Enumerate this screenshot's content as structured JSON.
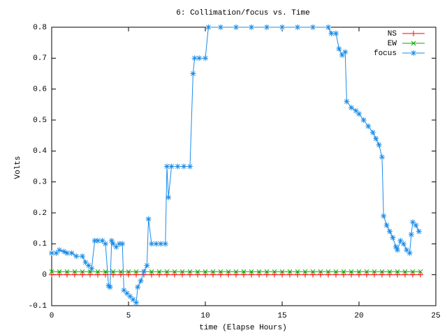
{
  "chart_data": {
    "type": "line",
    "title": "6: Collimation/focus vs. Time",
    "x_label": "time (Elapse Hours)",
    "y_label": "Volts",
    "xlim": [
      0,
      25
    ],
    "ylim": [
      -0.1,
      0.8
    ],
    "xticks": [
      0,
      5,
      10,
      15,
      20,
      25
    ],
    "yticks": [
      -0.1,
      0,
      0.1,
      0.2,
      0.3,
      0.4,
      0.5,
      0.6,
      0.7,
      0.8
    ],
    "legend": "top-right",
    "x": [
      0,
      0.5,
      1,
      1.5,
      2,
      2.5,
      3,
      3.5,
      4,
      4.5,
      5,
      5.5,
      6,
      6.5,
      7,
      7.5,
      8,
      8.5,
      9,
      9.5,
      10,
      10.5,
      11,
      11.5,
      12,
      12.5,
      13,
      13.5,
      14,
      14.5,
      15,
      15.5,
      16,
      16.5,
      17,
      17.5,
      18,
      18.5,
      19,
      19.5,
      20,
      20.5,
      21,
      21.5,
      22,
      22.5,
      23,
      23.5,
      24
    ],
    "series": [
      {
        "name": "NS",
        "color": "#ff0000",
        "marker": "plus",
        "values": [
          0,
          0,
          0,
          0,
          0,
          0,
          0,
          0,
          0,
          0,
          0,
          0,
          0,
          0,
          0,
          0,
          0,
          0,
          0,
          0,
          0,
          0,
          0,
          0,
          0,
          0,
          0,
          0,
          0,
          0,
          0,
          0,
          0,
          0,
          0,
          0,
          0,
          0,
          0,
          0,
          0,
          0,
          0,
          0,
          0,
          0,
          0,
          0,
          0
        ]
      },
      {
        "name": "EW",
        "color": "#00b000",
        "marker": "cross",
        "values": [
          0.01,
          0.01,
          0.01,
          0.01,
          0.01,
          0.01,
          0.01,
          0.01,
          0.01,
          0.01,
          0.01,
          0.01,
          0.01,
          0.01,
          0.01,
          0.01,
          0.01,
          0.01,
          0.01,
          0.01,
          0.01,
          0.01,
          0.01,
          0.01,
          0.01,
          0.01,
          0.01,
          0.01,
          0.01,
          0.01,
          0.01,
          0.01,
          0.01,
          0.01,
          0.01,
          0.01,
          0.01,
          0.01,
          0.01,
          0.01,
          0.01,
          0.01,
          0.01,
          0.01,
          0.01,
          0.01,
          0.01,
          0.01,
          0.01
        ]
      },
      {
        "name": "focus",
        "color": "#1a8ce8",
        "marker": "star",
        "x": [
          0,
          0.3,
          0.5,
          0.8,
          1.0,
          1.3,
          1.6,
          2.0,
          2.2,
          2.4,
          2.6,
          2.8,
          3.0,
          3.3,
          3.5,
          3.7,
          3.8,
          3.9,
          4.0,
          4.2,
          4.4,
          4.6,
          4.7,
          4.9,
          5.1,
          5.3,
          5.5,
          5.6,
          5.8,
          6.0,
          6.2,
          6.3,
          6.5,
          6.8,
          7.1,
          7.4,
          7.5,
          7.6,
          7.8,
          8.2,
          8.6,
          9.0,
          9.2,
          9.3,
          9.6,
          10.0,
          10.2,
          11,
          12,
          13,
          14,
          15,
          16,
          17,
          18,
          18.2,
          18.5,
          18.7,
          18.9,
          19.1,
          19.2,
          19.5,
          19.8,
          20.0,
          20.3,
          20.6,
          20.9,
          21.1,
          21.3,
          21.5,
          21.6,
          21.8,
          22.0,
          22.2,
          22.4,
          22.5,
          22.7,
          22.9,
          23.1,
          23.3,
          23.4,
          23.5,
          23.7,
          23.9
        ],
        "values": [
          0.07,
          0.07,
          0.08,
          0.075,
          0.07,
          0.07,
          0.06,
          0.06,
          0.04,
          0.03,
          0.02,
          0.11,
          0.11,
          0.11,
          0.1,
          -0.035,
          -0.04,
          0.11,
          0.1,
          0.09,
          0.1,
          0.1,
          -0.05,
          -0.06,
          -0.07,
          -0.08,
          -0.09,
          -0.04,
          -0.02,
          0.01,
          0.03,
          0.18,
          0.1,
          0.1,
          0.1,
          0.1,
          0.35,
          0.25,
          0.35,
          0.35,
          0.35,
          0.35,
          0.65,
          0.7,
          0.7,
          0.7,
          0.8,
          0.8,
          0.8,
          0.8,
          0.8,
          0.8,
          0.8,
          0.8,
          0.8,
          0.78,
          0.78,
          0.73,
          0.71,
          0.72,
          0.56,
          0.54,
          0.53,
          0.52,
          0.5,
          0.48,
          0.46,
          0.44,
          0.42,
          0.38,
          0.19,
          0.16,
          0.14,
          0.12,
          0.09,
          0.08,
          0.11,
          0.1,
          0.08,
          0.07,
          0.13,
          0.17,
          0.16,
          0.14
        ]
      }
    ]
  }
}
